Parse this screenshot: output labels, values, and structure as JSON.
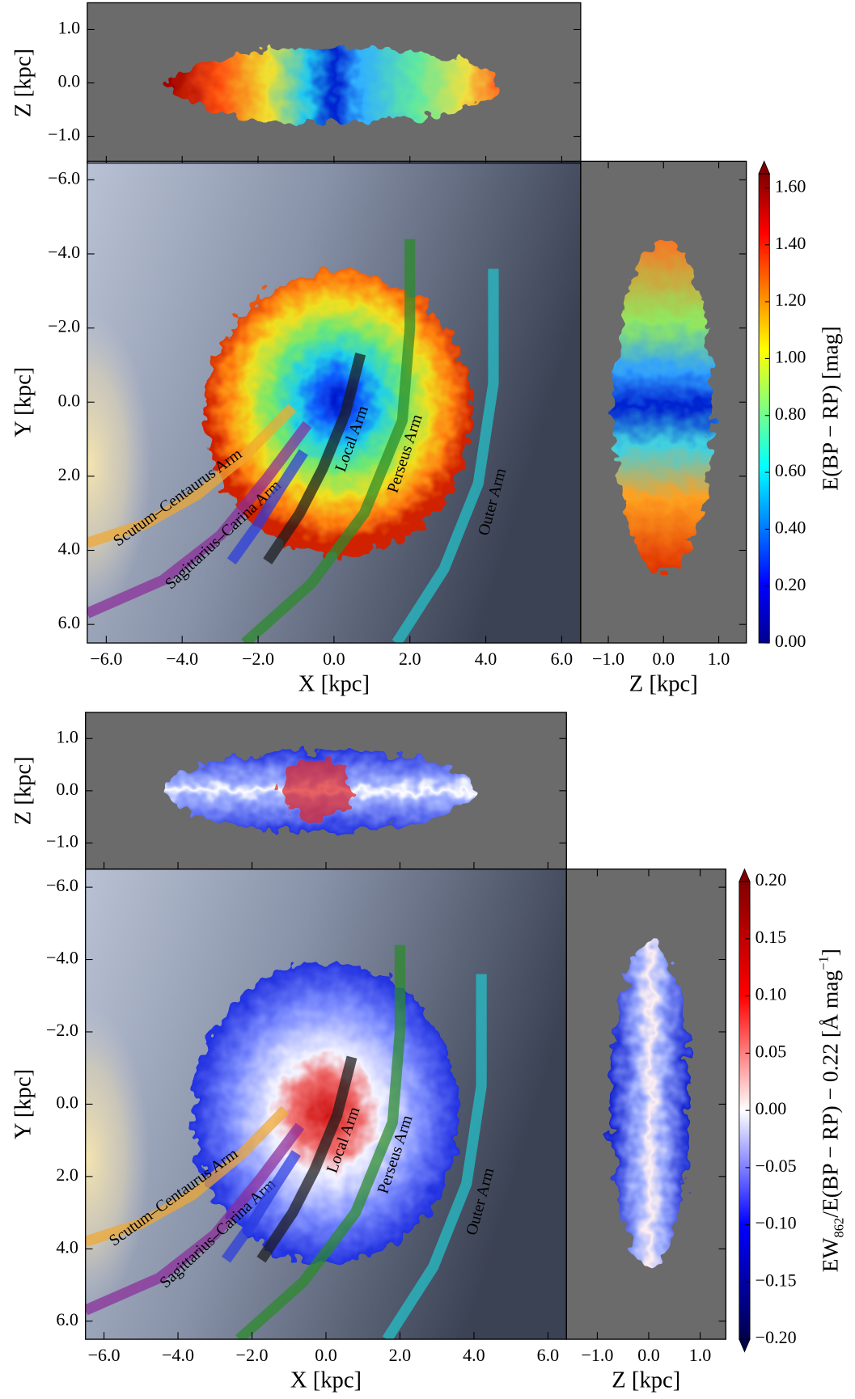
{
  "chart_data": [
    {
      "type": "map",
      "top": {
        "ylabel": "Z [kpc]",
        "xlim": [
          -6.5,
          6.5
        ],
        "ylim": [
          -1.5,
          1.5
        ],
        "yticks": [
          {
            "value": -1.0,
            "label": "−1.0"
          },
          {
            "value": 0.0,
            "label": "0.0"
          },
          {
            "value": 1.0,
            "label": "1.0"
          }
        ]
      },
      "main": {
        "xlabel": "X [kpc]",
        "ylabel": "Y [kpc]",
        "xlim": [
          -6.5,
          6.5
        ],
        "ylim": [
          -6.5,
          6.5
        ],
        "yaxis_inverted": true,
        "xticks": [
          {
            "value": -6.0,
            "label": "−6.0"
          },
          {
            "value": -4.0,
            "label": "−4.0"
          },
          {
            "value": -2.0,
            "label": "−2.0"
          },
          {
            "value": 0.0,
            "label": "0.0"
          },
          {
            "value": 2.0,
            "label": "2.0"
          },
          {
            "value": 4.0,
            "label": "4.0"
          },
          {
            "value": 6.0,
            "label": "6.0"
          }
        ],
        "yticks": [
          {
            "value": -6.0,
            "label": "−6.0"
          },
          {
            "value": -4.0,
            "label": "−4.0"
          },
          {
            "value": -2.0,
            "label": "−2.0"
          },
          {
            "value": 0.0,
            "label": "0.0"
          },
          {
            "value": 2.0,
            "label": "2.0"
          },
          {
            "value": 4.0,
            "label": "4.0"
          },
          {
            "value": 6.0,
            "label": "6.0"
          }
        ],
        "annotations": [
          {
            "text": "Scutum–Centaurus Arm",
            "color": "#f0a830"
          },
          {
            "text": "Sagittarius–Carina Arm",
            "color": "#8a2d9a"
          },
          {
            "text": "",
            "color": "#2a3ce0"
          },
          {
            "text": "Local Arm",
            "color": "#1a1a1a"
          },
          {
            "text": "Perseus Arm",
            "color": "#2a8a2a"
          },
          {
            "text": "Outer Arm",
            "color": "#22c4cc"
          }
        ]
      },
      "side": {
        "xlabel": "Z [kpc]",
        "xlim": [
          -1.5,
          1.5
        ],
        "xticks": [
          {
            "value": -1.0,
            "label": "−1.0"
          },
          {
            "value": 0.0,
            "label": "0.0"
          },
          {
            "value": 1.0,
            "label": "1.0"
          }
        ]
      },
      "colorbar": {
        "label": [
          "E(BP − RP) [mag]"
        ],
        "lim": [
          0,
          1.65
        ],
        "colormap": "jet",
        "extend": "max",
        "ticks": [
          {
            "value": 0,
            "label": "0.00"
          },
          {
            "value": 0.2,
            "label": "0.20"
          },
          {
            "value": 0.4,
            "label": "0.40"
          },
          {
            "value": 0.6,
            "label": "0.60"
          },
          {
            "value": 0.8,
            "label": "0.80"
          },
          {
            "value": 1.0,
            "label": "1.00"
          },
          {
            "value": 1.2,
            "label": "1.20"
          },
          {
            "value": 1.4,
            "label": "1.40"
          },
          {
            "value": 1.6,
            "label": "1.60"
          }
        ]
      }
    },
    {
      "type": "map",
      "top": {
        "ylabel": "Z [kpc]",
        "xlim": [
          -6.5,
          6.5
        ],
        "ylim": [
          -1.5,
          1.5
        ],
        "yticks": [
          {
            "value": -1.0,
            "label": "−1.0"
          },
          {
            "value": 0.0,
            "label": "0.0"
          },
          {
            "value": 1.0,
            "label": "1.0"
          }
        ]
      },
      "main": {
        "xlabel": "X [kpc]",
        "ylabel": "Y [kpc]",
        "xlim": [
          -6.5,
          6.5
        ],
        "ylim": [
          -6.5,
          6.5
        ],
        "yaxis_inverted": true,
        "xticks": [
          {
            "value": -6.0,
            "label": "−6.0"
          },
          {
            "value": -4.0,
            "label": "−4.0"
          },
          {
            "value": -2.0,
            "label": "−2.0"
          },
          {
            "value": 0.0,
            "label": "0.0"
          },
          {
            "value": 2.0,
            "label": "2.0"
          },
          {
            "value": 4.0,
            "label": "4.0"
          },
          {
            "value": 6.0,
            "label": "6.0"
          }
        ],
        "yticks": [
          {
            "value": -6.0,
            "label": "−6.0"
          },
          {
            "value": -4.0,
            "label": "−4.0"
          },
          {
            "value": -2.0,
            "label": "−2.0"
          },
          {
            "value": 0.0,
            "label": "0.0"
          },
          {
            "value": 2.0,
            "label": "2.0"
          },
          {
            "value": 4.0,
            "label": "4.0"
          },
          {
            "value": 6.0,
            "label": "6.0"
          }
        ],
        "annotations": [
          {
            "text": "Scutum–Centaurus Arm",
            "color": "#f0a830"
          },
          {
            "text": "Sagittarius–Carina Arm",
            "color": "#8a2d9a"
          },
          {
            "text": "",
            "color": "#2a3ce0"
          },
          {
            "text": "Local Arm",
            "color": "#1a1a1a"
          },
          {
            "text": "Perseus Arm",
            "color": "#2a8a2a"
          },
          {
            "text": "Outer Arm",
            "color": "#22c4cc"
          }
        ]
      },
      "side": {
        "xlabel": "Z [kpc]",
        "xlim": [
          -1.6,
          1.5
        ],
        "xticks": [
          {
            "value": -1.0,
            "label": "−1.0"
          },
          {
            "value": 0.0,
            "label": "0.0"
          },
          {
            "value": 1.0,
            "label": "1.0"
          }
        ]
      },
      "colorbar": {
        "label": [
          "EW",
          "862",
          "/E(BP − RP) − 0.22 [Å mag",
          "−1",
          "]"
        ],
        "lim": [
          -0.2,
          0.2
        ],
        "colormap": "seismic",
        "extend": "both",
        "ticks": [
          {
            "value": -0.2,
            "label": "−0.20"
          },
          {
            "value": -0.15,
            "label": "−0.15"
          },
          {
            "value": -0.1,
            "label": "−0.10"
          },
          {
            "value": -0.05,
            "label": "−0.05"
          },
          {
            "value": 0,
            "label": "0.00"
          },
          {
            "value": 0.05,
            "label": "0.05"
          },
          {
            "value": 0.1,
            "label": "0.10"
          },
          {
            "value": 0.15,
            "label": "0.15"
          },
          {
            "value": 0.2,
            "label": "0.20"
          }
        ]
      }
    }
  ]
}
